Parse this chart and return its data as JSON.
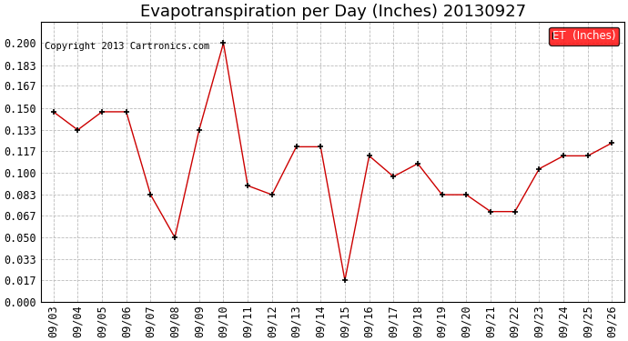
{
  "title": "Evapotranspiration per Day (Inches) 20130927",
  "copyright": "Copyright 2013 Cartronics.com",
  "legend_label": "ET  (Inches)",
  "legend_bg": "#ff0000",
  "legend_text_color": "#ffffff",
  "line_color": "#cc0000",
  "marker_color": "#000000",
  "background_color": "#ffffff",
  "grid_color": "#bbbbbb",
  "dates": [
    "09/03",
    "09/04",
    "09/05",
    "09/06",
    "09/07",
    "09/08",
    "09/09",
    "09/10",
    "09/11",
    "09/12",
    "09/13",
    "09/14",
    "09/15",
    "09/16",
    "09/17",
    "09/18",
    "09/19",
    "09/20",
    "09/21",
    "09/22",
    "09/23",
    "09/24",
    "09/25",
    "09/26"
  ],
  "values": [
    0.147,
    0.133,
    0.147,
    0.147,
    0.083,
    0.05,
    0.133,
    0.2,
    0.09,
    0.083,
    0.12,
    0.12,
    0.017,
    0.113,
    0.097,
    0.107,
    0.083,
    0.083,
    0.07,
    0.07,
    0.103,
    0.113,
    0.113,
    0.123
  ],
  "ylim": [
    0.0,
    0.2166
  ],
  "yticks": [
    0.0,
    0.017,
    0.033,
    0.05,
    0.067,
    0.083,
    0.1,
    0.117,
    0.133,
    0.15,
    0.167,
    0.183,
    0.2
  ],
  "title_fontsize": 13,
  "copyright_fontsize": 7.5,
  "tick_fontsize": 8.5,
  "legend_fontsize": 8.5
}
